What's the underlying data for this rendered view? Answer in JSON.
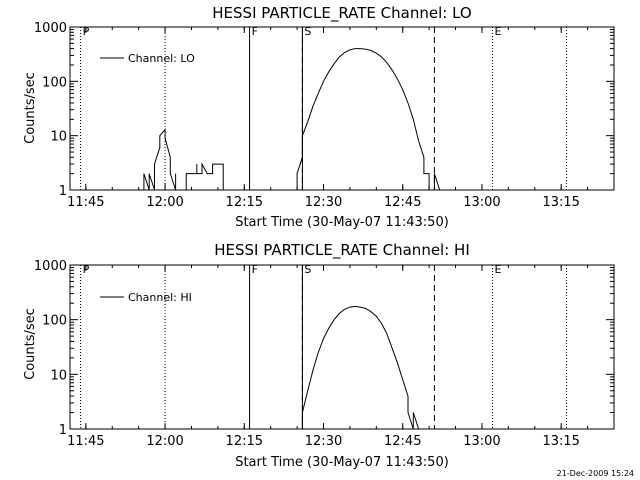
{
  "chart_data": [
    {
      "type": "line",
      "title": "HESSI PARTICLE_RATE Channel: LO",
      "xlabel": "Start Time (30-May-07 11:43:50)",
      "ylabel": "Counts/sec",
      "yscale": "log",
      "xlim": [
        "11:42",
        "13:25"
      ],
      "ylim": [
        1,
        1000
      ],
      "x_ticks": [
        "11:45",
        "12:00",
        "12:15",
        "12:30",
        "12:45",
        "13:00",
        "13:15"
      ],
      "y_ticks": [
        "1",
        "10",
        "100",
        "1000"
      ],
      "legend": {
        "label": "Channel: LO",
        "position": "top-left"
      },
      "markers": [
        {
          "label": "P",
          "time": "11:44",
          "style": "dotted"
        },
        {
          "label": "",
          "time": "12:00",
          "style": "dotted"
        },
        {
          "label": "F",
          "time": "12:16",
          "style": "solid"
        },
        {
          "label": "",
          "time": "12:26",
          "style": "solid"
        },
        {
          "label": "S",
          "time": "12:26",
          "style": "dashed"
        },
        {
          "label": "",
          "time": "12:51",
          "style": "dashed"
        },
        {
          "label": "E",
          "time": "13:02",
          "style": "dotted"
        },
        {
          "label": "",
          "time": "13:16",
          "style": "dotted"
        }
      ],
      "series": [
        {
          "name": "Channel: LO",
          "segments": [
            [
              [
                "11:56",
                "1"
              ],
              [
                "11:56",
                "2"
              ],
              [
                "11:57",
                "1"
              ],
              [
                "11:57",
                "2"
              ],
              [
                "11:58",
                "1"
              ],
              [
                "11:58",
                "3"
              ],
              [
                "11:59",
                "6"
              ],
              [
                "11:59",
                "10"
              ],
              [
                "12:00",
                "13"
              ],
              [
                "12:00",
                "9"
              ],
              [
                "12:01",
                "4"
              ],
              [
                "12:01",
                "2"
              ],
              [
                "12:02",
                "1"
              ],
              [
                "12:02",
                "2"
              ],
              [
                "12:02",
                "1"
              ]
            ],
            [
              [
                "12:04",
                "1"
              ],
              [
                "12:04",
                "2"
              ],
              [
                "12:05",
                "2"
              ],
              [
                "12:06",
                "2"
              ],
              [
                "12:06",
                "3"
              ],
              [
                "12:06",
                "2"
              ],
              [
                "12:07",
                "2"
              ],
              [
                "12:07",
                "3"
              ],
              [
                "12:08",
                "2"
              ],
              [
                "12:09",
                "2"
              ],
              [
                "12:09",
                "3"
              ],
              [
                "12:10",
                "3"
              ],
              [
                "12:11",
                "3"
              ],
              [
                "12:11",
                "2"
              ],
              [
                "12:11",
                "1"
              ]
            ],
            [
              [
                "12:25",
                "1"
              ],
              [
                "12:25",
                "2"
              ],
              [
                "12:26",
                "4"
              ],
              [
                "12:26",
                "10"
              ],
              [
                "12:27",
                "18"
              ],
              [
                "12:28",
                "35"
              ],
              [
                "12:29",
                "60"
              ],
              [
                "12:30",
                "100"
              ],
              [
                "12:31",
                "150"
              ],
              [
                "12:32",
                "210"
              ],
              [
                "12:33",
                "280"
              ],
              [
                "12:34",
                "340"
              ],
              [
                "12:35",
                "380"
              ],
              [
                "12:36",
                "400"
              ],
              [
                "12:37",
                "400"
              ],
              [
                "12:38",
                "390"
              ],
              [
                "12:39",
                "370"
              ],
              [
                "12:40",
                "330"
              ],
              [
                "12:41",
                "280"
              ],
              [
                "12:42",
                "220"
              ],
              [
                "12:43",
                "160"
              ],
              [
                "12:44",
                "110"
              ],
              [
                "12:45",
                "70"
              ],
              [
                "12:46",
                "40"
              ],
              [
                "12:47",
                "20"
              ],
              [
                "12:48",
                "8"
              ],
              [
                "12:49",
                "4"
              ],
              [
                "12:49",
                "2"
              ],
              [
                "12:50",
                "2"
              ],
              [
                "12:50",
                "1"
              ]
            ],
            [
              [
                "12:51",
                "1"
              ],
              [
                "12:51",
                "2"
              ],
              [
                "12:52",
                "1"
              ]
            ]
          ]
        }
      ]
    },
    {
      "type": "line",
      "title": "HESSI PARTICLE_RATE Channel: HI",
      "xlabel": "Start Time (30-May-07 11:43:50)",
      "ylabel": "Counts/sec",
      "yscale": "log",
      "xlim": [
        "11:42",
        "13:25"
      ],
      "ylim": [
        1,
        1000
      ],
      "x_ticks": [
        "11:45",
        "12:00",
        "12:15",
        "12:30",
        "12:45",
        "13:00",
        "13:15"
      ],
      "y_ticks": [
        "1",
        "10",
        "100",
        "1000"
      ],
      "legend": {
        "label": "Channel: HI",
        "position": "top-left"
      },
      "markers": [
        {
          "label": "P",
          "time": "11:44",
          "style": "dotted"
        },
        {
          "label": "",
          "time": "12:00",
          "style": "dotted"
        },
        {
          "label": "F",
          "time": "12:16",
          "style": "solid"
        },
        {
          "label": "",
          "time": "12:26",
          "style": "solid"
        },
        {
          "label": "S",
          "time": "12:26",
          "style": "dashed"
        },
        {
          "label": "",
          "time": "12:51",
          "style": "dashed"
        },
        {
          "label": "E",
          "time": "13:02",
          "style": "dotted"
        },
        {
          "label": "",
          "time": "13:16",
          "style": "dotted"
        }
      ],
      "series": [
        {
          "name": "Channel: HI",
          "segments": [
            [
              [
                "12:26",
                "1"
              ],
              [
                "12:26",
                "2"
              ],
              [
                "12:27",
                "5"
              ],
              [
                "12:28",
                "12"
              ],
              [
                "12:29",
                "25"
              ],
              [
                "12:30",
                "45"
              ],
              [
                "12:31",
                "70"
              ],
              [
                "12:32",
                "100"
              ],
              [
                "12:33",
                "130"
              ],
              [
                "12:34",
                "155"
              ],
              [
                "12:35",
                "170"
              ],
              [
                "12:36",
                "175"
              ],
              [
                "12:37",
                "170"
              ],
              [
                "12:38",
                "160"
              ],
              [
                "12:39",
                "140"
              ],
              [
                "12:40",
                "115"
              ],
              [
                "12:41",
                "85"
              ],
              [
                "12:42",
                "55"
              ],
              [
                "12:43",
                "30"
              ],
              [
                "12:44",
                "16"
              ],
              [
                "12:45",
                "8"
              ],
              [
                "12:46",
                "4"
              ],
              [
                "12:46",
                "2"
              ],
              [
                "12:47",
                "1"
              ],
              [
                "12:47",
                "2"
              ],
              [
                "12:48",
                "1"
              ]
            ]
          ]
        }
      ]
    }
  ],
  "timestamp": "21-Dec-2009 15:24"
}
